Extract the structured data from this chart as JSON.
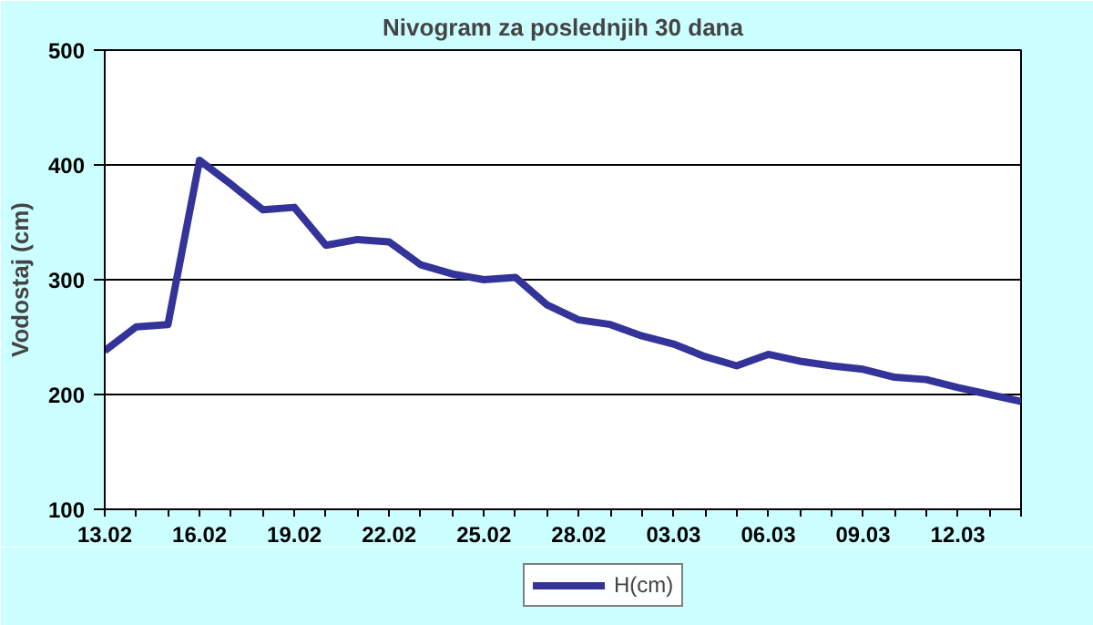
{
  "chart_data": {
    "type": "line",
    "title": "Nivogram za poslednjih 30 dana",
    "ylabel": "Vodostaj (cm)",
    "categories": [
      "13.02",
      null,
      null,
      "16.02",
      null,
      null,
      "19.02",
      null,
      null,
      "22.02",
      null,
      null,
      "25.02",
      null,
      null,
      "28.02",
      null,
      null,
      "03.03",
      null,
      null,
      "06.03",
      null,
      null,
      "09.03",
      null,
      null,
      "12.03",
      null,
      null
    ],
    "series": [
      {
        "name": "H(cm)",
        "color": "#333399",
        "values": [
          238,
          259,
          261,
          404,
          383,
          361,
          363,
          330,
          335,
          333,
          313,
          305,
          300,
          302,
          278,
          265,
          261,
          251,
          244,
          233,
          225,
          235,
          229,
          225,
          222,
          215,
          213,
          206,
          200,
          194
        ]
      }
    ],
    "ylim": [
      100,
      500
    ],
    "yticks": [
      100,
      200,
      300,
      400,
      500
    ],
    "grid": "y",
    "legend": "bottom",
    "marker": "none",
    "line_style": "solid"
  }
}
